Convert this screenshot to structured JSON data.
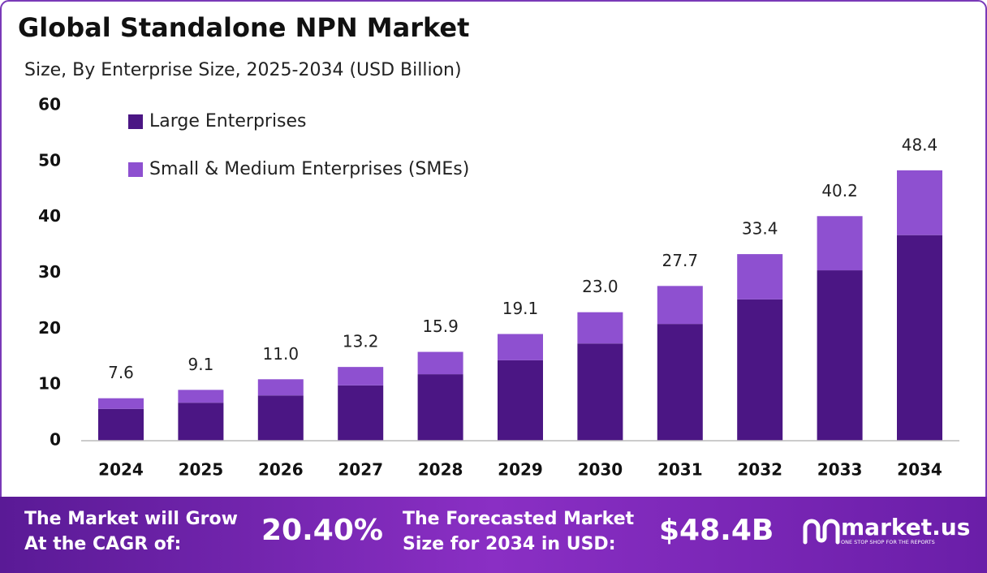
{
  "chart_data": {
    "type": "stacked_bar",
    "title": "Global Standalone NPN Market",
    "subtitle": "Size, By Enterprise Size, 2025-2034 (USD Billion)",
    "categories": [
      "2024",
      "2025",
      "2026",
      "2027",
      "2028",
      "2029",
      "2030",
      "2031",
      "2032",
      "2033",
      "2034"
    ],
    "series": [
      {
        "name": "Large Enterprises",
        "color": "#4b1684",
        "values": [
          5.7,
          6.8,
          8.1,
          9.9,
          11.9,
          14.4,
          17.4,
          20.9,
          25.3,
          30.5,
          36.8
        ]
      },
      {
        "name": "Small & Medium Enterprises (SMEs)",
        "color": "#8e50d0",
        "values": [
          1.9,
          2.3,
          2.9,
          3.3,
          4.0,
          4.7,
          5.6,
          6.8,
          8.1,
          9.7,
          11.6
        ]
      }
    ],
    "totals": [
      "7.6",
      "9.1",
      "11.0",
      "13.2",
      "15.9",
      "19.1",
      "23.0",
      "27.7",
      "33.4",
      "40.2",
      "48.4"
    ],
    "ylim": [
      0,
      60
    ],
    "yticks": [
      0,
      10,
      20,
      30,
      40,
      50,
      60
    ],
    "grid": false,
    "legend": "top-left"
  },
  "footer": {
    "cagr_text": [
      "The Market will Grow",
      "At the CAGR of:"
    ],
    "cagr_value": "20.40%",
    "forecast_text": [
      "The Forecasted Market",
      "Size for 2034 in USD:"
    ],
    "forecast_value": "$48.4B",
    "brand": "market.us",
    "tagline": "ONE STOP SHOP FOR THE REPORTS"
  }
}
